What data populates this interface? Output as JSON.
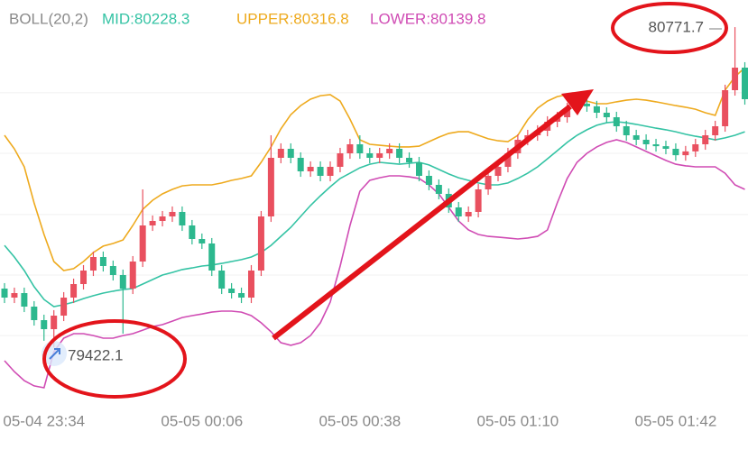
{
  "chart_data": {
    "type": "candlestick",
    "indicator": "BOLL(20,2)",
    "categories": [
      null,
      null,
      null,
      null,
      "05-04 23:34",
      null,
      null,
      null,
      null,
      null,
      null,
      null,
      null,
      null,
      null,
      null,
      null,
      null,
      null,
      null,
      "05-05 00:06",
      null,
      null,
      null,
      null,
      null,
      null,
      null,
      null,
      null,
      null,
      null,
      null,
      null,
      null,
      null,
      "05-05 00:38",
      null,
      null,
      null,
      null,
      null,
      null,
      null,
      null,
      null,
      null,
      null,
      null,
      null,
      null,
      null,
      "05-05 01:10",
      null,
      null,
      null,
      null,
      null,
      null,
      null,
      null,
      null,
      null,
      null,
      null,
      null,
      null,
      null,
      "05-05 01:42",
      null,
      null,
      null,
      null,
      null,
      null,
      null
    ],
    "open": [
      79670,
      79632,
      79651,
      79594,
      79537,
      79499,
      79556,
      79632,
      79689,
      79746,
      79803,
      79765,
      79727,
      79670,
      79784,
      79936,
      79955,
      79974,
      79993,
      79936,
      79879,
      79860,
      79746,
      79670,
      79651,
      79632,
      79746,
      79974,
      80221,
      80259,
      80221,
      80164,
      80183,
      80145,
      80183,
      80240,
      80278,
      80240,
      80221,
      80240,
      80259,
      80221,
      80202,
      80145,
      80107,
      80069,
      80012,
      79974,
      79993,
      80088,
      80145,
      80183,
      80240,
      80297,
      80316,
      80335,
      80373,
      80392,
      80430,
      80449,
      80438,
      80411,
      80392,
      80354,
      80316,
      80297,
      80278,
      80270,
      80259,
      80232,
      80248,
      80278,
      80316,
      80354,
      80506,
      80601
    ],
    "high": [
      79693,
      79674,
      79674,
      79617,
      79560,
      79579,
      79655,
      79712,
      79769,
      79826,
      79826,
      79788,
      79750,
      79807,
      80088,
      79978,
      79997,
      80016,
      80016,
      79959,
      79902,
      79883,
      79769,
      79693,
      79674,
      79769,
      79997,
      80316,
      80282,
      80282,
      80244,
      80206,
      80206,
      80206,
      80263,
      80301,
      80316,
      80263,
      80263,
      80282,
      80282,
      80244,
      80225,
      80168,
      80130,
      80092,
      80035,
      80016,
      80111,
      80168,
      80206,
      80263,
      80320,
      80339,
      80358,
      80396,
      80415,
      80453,
      80472,
      80472,
      80461,
      80434,
      80415,
      80377,
      80339,
      80320,
      80301,
      80293,
      80282,
      80271,
      80301,
      80339,
      80377,
      80529,
      80771.7,
      80624
    ],
    "low": [
      79609,
      79609,
      79571,
      79514,
      79450,
      79422.1,
      79533,
      79609,
      79666,
      79723,
      79742,
      79704,
      79480,
      79647,
      79761,
      79913,
      79932,
      79951,
      79913,
      79856,
      79837,
      79723,
      79647,
      79628,
      79609,
      79609,
      79723,
      79951,
      80198,
      80198,
      80141,
      80141,
      80122,
      80122,
      80160,
      80217,
      80217,
      80198,
      80198,
      80217,
      80198,
      80179,
      80122,
      80084,
      80046,
      79989,
      79951,
      79951,
      79970,
      80065,
      80122,
      80160,
      80217,
      80274,
      80293,
      80312,
      80350,
      80369,
      80407,
      80415,
      80388,
      80369,
      80331,
      80293,
      80274,
      80255,
      80247,
      80236,
      80209,
      80209,
      80225,
      80255,
      80293,
      80331,
      80483,
      80445
    ],
    "close": [
      79632,
      79651,
      79594,
      79537,
      79499,
      79556,
      79632,
      79689,
      79746,
      79803,
      79765,
      79727,
      79670,
      79784,
      79936,
      79955,
      79974,
      79993,
      79936,
      79879,
      79860,
      79746,
      79670,
      79651,
      79632,
      79746,
      79974,
      80221,
      80259,
      80221,
      80164,
      80183,
      80145,
      80183,
      80240,
      80278,
      80240,
      80221,
      80240,
      80259,
      80221,
      80202,
      80145,
      80107,
      80069,
      80012,
      79974,
      79993,
      80088,
      80145,
      80183,
      80240,
      80297,
      80316,
      80335,
      80373,
      80392,
      80430,
      80449,
      80438,
      80411,
      80392,
      80354,
      80316,
      80297,
      80278,
      80270,
      80259,
      80232,
      80248,
      80278,
      80316,
      80354,
      80506,
      80601,
      80468
    ],
    "up_color": "#e9505f",
    "down_color": "#2cb88e",
    "series": [
      {
        "name": "MID:80228.3",
        "color": "#34c3a4",
        "values": [
          79852,
          79803,
          79746,
          79678,
          79624,
          79594,
          79602,
          79613,
          79628,
          79640,
          79651,
          79659,
          79666,
          79670,
          79689,
          79708,
          79727,
          79738,
          79750,
          79757,
          79765,
          79769,
          79776,
          79784,
          79792,
          79803,
          79822,
          79852,
          79890,
          79928,
          79974,
          80020,
          80061,
          80099,
          80134,
          80156,
          80179,
          80194,
          80202,
          80198,
          80194,
          80198,
          80202,
          80191,
          80172,
          80153,
          80137,
          80126,
          80115,
          80107,
          80107,
          80115,
          80134,
          80156,
          80183,
          80217,
          80251,
          80286,
          80316,
          80339,
          80358,
          80369,
          80373,
          80369,
          80362,
          80354,
          80346,
          80339,
          80331,
          80320,
          80312,
          80305,
          80297,
          80305,
          80316,
          80331
        ]
      },
      {
        "name": "UPPER:80316.8",
        "color": "#eeaa1e",
        "values": [
          80316,
          80259,
          80183,
          80031,
          79898,
          79784,
          79746,
          79754,
          79784,
          79822,
          79849,
          79860,
          79875,
          79936,
          80004,
          80042,
          80069,
          80088,
          80103,
          80107,
          80107,
          80107,
          80115,
          80126,
          80134,
          80145,
          80202,
          80267,
          80343,
          80403,
          80441,
          80468,
          80483,
          80487,
          80460,
          80384,
          80297,
          80278,
          80274,
          80270,
          80267,
          80267,
          80270,
          80289,
          80308,
          80324,
          80331,
          80331,
          80316,
          80301,
          80293,
          80289,
          80316,
          80381,
          80430,
          80460,
          80479,
          80487,
          80479,
          80460,
          80449,
          80449,
          80457,
          80464,
          80468,
          80464,
          80457,
          80449,
          80441,
          80434,
          80426,
          80411,
          80400,
          80506,
          80563,
          80601
        ]
      },
      {
        "name": "LOWER:80139.8",
        "color": "#d04cb4",
        "values": [
          79366,
          79320,
          79282,
          79260,
          79252,
          79404,
          79461,
          79480,
          79480,
          79472,
          79461,
          79461,
          79472,
          79480,
          79495,
          79510,
          79518,
          79533,
          79548,
          79556,
          79563,
          79571,
          79575,
          79575,
          79571,
          79556,
          79526,
          79488,
          79442,
          79431,
          79442,
          79472,
          79526,
          79613,
          79765,
          79936,
          80080,
          80126,
          80137,
          80145,
          80145,
          80141,
          80134,
          80107,
          80069,
          80012,
          79955,
          79917,
          79898,
          79890,
          79887,
          79883,
          79879,
          79883,
          79890,
          79917,
          80031,
          80134,
          80202,
          80240,
          80267,
          80286,
          80297,
          80286,
          80267,
          80248,
          80229,
          80210,
          80194,
          80187,
          80183,
          80183,
          80183,
          80156,
          80107,
          80088
        ]
      }
    ],
    "max_price": 80771.7,
    "min_price": 79422.1,
    "ylim": [
      79138,
      80886
    ],
    "yticks": [
      80495,
      80240,
      79982,
      79727,
      79472
    ],
    "grid": true
  }
}
